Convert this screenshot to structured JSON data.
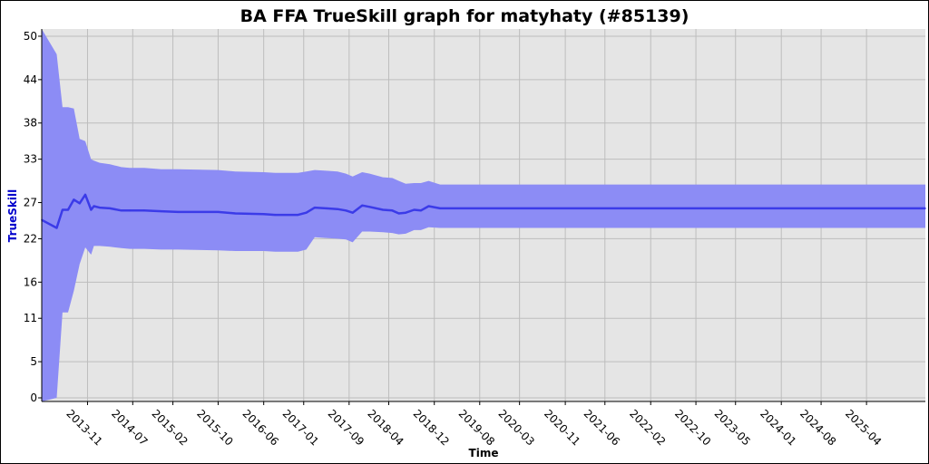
{
  "colors": {
    "background": "#e5e5e5",
    "grid": "#bdbdbd",
    "band": "#8c8cf5",
    "line": "#3b3be8",
    "ylabel": "#0000cc"
  },
  "chart_data": {
    "type": "area",
    "title": "BA FFA TrueSkill graph for matyhaty (#85139)",
    "xlabel": "Time",
    "ylabel": "TrueSkill",
    "grid": true,
    "ylim": [
      -0.5,
      51
    ],
    "yticks": [
      0,
      5,
      11,
      16,
      22,
      27,
      33,
      38,
      44,
      50
    ],
    "xlim": [
      "2013-03-01",
      "2026-02-10"
    ],
    "xticks": [
      "2013-11",
      "2014-07",
      "2015-02",
      "2015-10",
      "2016-06",
      "2017-01",
      "2017-09",
      "2018-04",
      "2018-12",
      "2019-08",
      "2020-03",
      "2020-11",
      "2021-06",
      "2022-02",
      "2022-10",
      "2023-05",
      "2024-01",
      "2024-08",
      "2025-04"
    ],
    "series": [
      {
        "x": [
          "2013-03-01",
          "2013-05-20",
          "2013-06-20",
          "2013-07-20",
          "2013-08-20",
          "2013-09-20",
          "2013-10-20",
          "2013-11-20",
          "2013-12-05",
          "2014-01-05",
          "2014-03-01",
          "2014-05-01",
          "2014-06-15",
          "2014-09-01",
          "2014-12-01",
          "2015-03-01",
          "2015-10-01",
          "2016-01-01",
          "2016-06-01",
          "2016-08-01",
          "2016-12-01",
          "2017-01-15",
          "2017-03-01",
          "2017-05-01",
          "2017-07-01",
          "2017-08-15",
          "2017-09-20",
          "2017-11-10",
          "2017-12-20",
          "2018-03-01",
          "2018-04-20",
          "2018-05-25",
          "2018-07-01",
          "2018-08-15",
          "2018-09-20",
          "2018-11-01",
          "2019-01-01",
          "2026-02-10"
        ],
        "mean": [
          24.6,
          23.5,
          26.0,
          26.0,
          27.4,
          26.9,
          28.1,
          26.0,
          26.5,
          26.3,
          26.2,
          25.9,
          25.9,
          25.9,
          25.8,
          25.7,
          25.7,
          25.5,
          25.4,
          25.3,
          25.3,
          25.6,
          26.3,
          26.2,
          26.1,
          25.9,
          25.6,
          26.6,
          26.4,
          26.0,
          25.9,
          25.5,
          25.6,
          26.0,
          25.9,
          26.5,
          26.2,
          26.2
        ],
        "upper": [
          51.0,
          47.5,
          40.2,
          40.2,
          40.0,
          35.8,
          35.5,
          33.0,
          32.8,
          32.5,
          32.3,
          31.9,
          31.8,
          31.8,
          31.6,
          31.6,
          31.5,
          31.3,
          31.2,
          31.1,
          31.1,
          31.3,
          31.5,
          31.4,
          31.3,
          31.0,
          30.6,
          31.2,
          31.0,
          30.5,
          30.4,
          30.0,
          29.6,
          29.7,
          29.7,
          30.0,
          29.5,
          29.5
        ],
        "lower": [
          -0.5,
          0.0,
          11.8,
          11.8,
          14.8,
          18.5,
          20.8,
          19.8,
          21.0,
          21.0,
          20.9,
          20.7,
          20.6,
          20.6,
          20.5,
          20.5,
          20.4,
          20.3,
          20.3,
          20.2,
          20.2,
          20.5,
          22.2,
          22.1,
          22.0,
          21.9,
          21.5,
          23.0,
          23.0,
          22.9,
          22.8,
          22.6,
          22.7,
          23.2,
          23.2,
          23.6,
          23.5,
          23.5
        ]
      }
    ]
  }
}
